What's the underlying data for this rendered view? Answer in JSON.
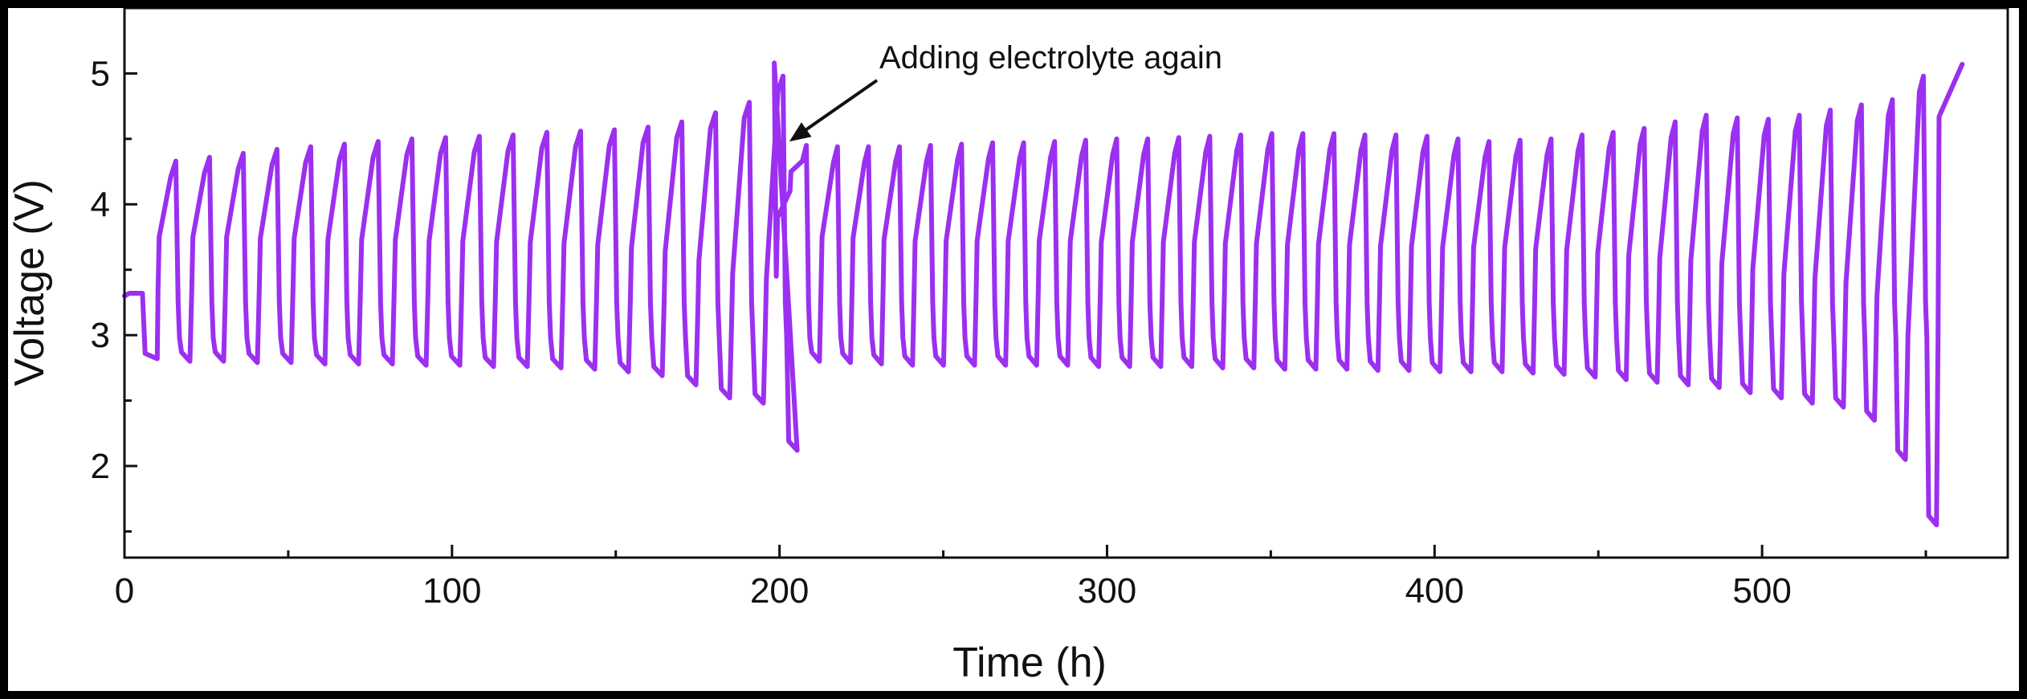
{
  "chart_data": {
    "type": "line",
    "xlabel": "Time (h)",
    "ylabel": "Voltage (V)",
    "xlim": [
      0,
      575
    ],
    "ylim": [
      1.3,
      5.5
    ],
    "xticks": [
      0,
      100,
      200,
      300,
      400,
      500
    ],
    "yticks": [
      2,
      3,
      4,
      5
    ],
    "grid": false,
    "legend": "none",
    "series_color": "#9B30F0",
    "series": [
      {
        "cycle_period_h": 10.3,
        "segment1": {
          "start_voltage": 3.3,
          "start_h": 0,
          "cycles_start_h": 10,
          "end_h": 197,
          "peaks": [
            4.33,
            4.36,
            4.39,
            4.42,
            4.44,
            4.46,
            4.48,
            4.5,
            4.51,
            4.52,
            4.53,
            4.55,
            4.56,
            4.57,
            4.59,
            4.63,
            4.7,
            4.78,
            4.98
          ],
          "troughs": [
            2.8,
            2.8,
            2.79,
            2.79,
            2.78,
            2.78,
            2.78,
            2.77,
            2.77,
            2.76,
            2.76,
            2.75,
            2.74,
            2.72,
            2.69,
            2.62,
            2.52,
            2.48,
            2.12
          ]
        },
        "electrolyte_event": {
          "x": 199,
          "low": 3.45,
          "high": 5.08
        },
        "segment2": {
          "start_h": 203,
          "end_h": 563,
          "peaks": [
            4.45,
            4.44,
            4.44,
            4.44,
            4.45,
            4.46,
            4.47,
            4.47,
            4.48,
            4.49,
            4.5,
            4.5,
            4.51,
            4.52,
            4.53,
            4.54,
            4.54,
            4.54,
            4.53,
            4.53,
            4.52,
            4.5,
            4.48,
            4.49,
            4.5,
            4.53,
            4.55,
            4.58,
            4.63,
            4.68,
            4.66,
            4.65,
            4.68,
            4.72,
            4.76,
            4.8,
            4.98,
            5.07
          ],
          "troughs": [
            2.8,
            2.79,
            2.78,
            2.77,
            2.77,
            2.77,
            2.77,
            2.77,
            2.77,
            2.76,
            2.76,
            2.76,
            2.76,
            2.75,
            2.75,
            2.74,
            2.74,
            2.74,
            2.73,
            2.73,
            2.72,
            2.72,
            2.72,
            2.71,
            2.7,
            2.68,
            2.66,
            2.64,
            2.62,
            2.6,
            2.56,
            2.52,
            2.48,
            2.45,
            2.35,
            2.05,
            1.55
          ]
        }
      }
    ],
    "annotations": [
      {
        "text": "Adding electrolyte again",
        "target_x": 203,
        "target_y": 4.48
      }
    ]
  }
}
